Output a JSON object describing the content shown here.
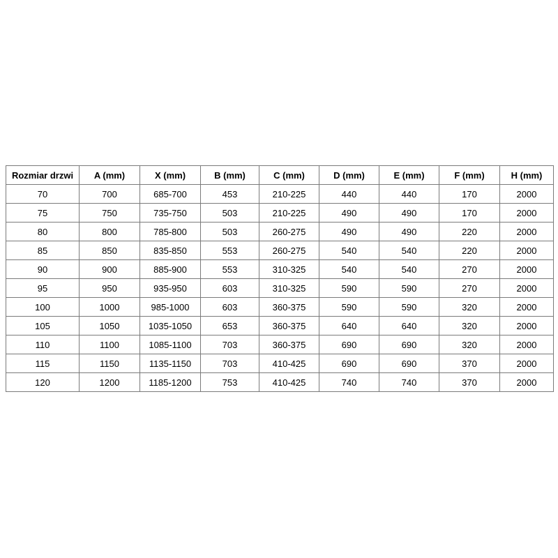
{
  "table": {
    "name": "door-size-dimensions-table",
    "headers": [
      "Rozmiar drzwi",
      "A (mm)",
      "X (mm)",
      "B (mm)",
      "C (mm)",
      "D (mm)",
      "E (mm)",
      "F (mm)",
      "H (mm)"
    ],
    "rows": [
      [
        "70",
        "700",
        "685-700",
        "453",
        "210-225",
        "440",
        "440",
        "170",
        "2000"
      ],
      [
        "75",
        "750",
        "735-750",
        "503",
        "210-225",
        "490",
        "490",
        "170",
        "2000"
      ],
      [
        "80",
        "800",
        "785-800",
        "503",
        "260-275",
        "490",
        "490",
        "220",
        "2000"
      ],
      [
        "85",
        "850",
        "835-850",
        "553",
        "260-275",
        "540",
        "540",
        "220",
        "2000"
      ],
      [
        "90",
        "900",
        "885-900",
        "553",
        "310-325",
        "540",
        "540",
        "270",
        "2000"
      ],
      [
        "95",
        "950",
        "935-950",
        "603",
        "310-325",
        "590",
        "590",
        "270",
        "2000"
      ],
      [
        "100",
        "1000",
        "985-1000",
        "603",
        "360-375",
        "590",
        "590",
        "320",
        "2000"
      ],
      [
        "105",
        "1050",
        "1035-1050",
        "653",
        "360-375",
        "640",
        "640",
        "320",
        "2000"
      ],
      [
        "110",
        "1100",
        "1085-1100",
        "703",
        "360-375",
        "690",
        "690",
        "320",
        "2000"
      ],
      [
        "115",
        "1150",
        "1135-1150",
        "703",
        "410-425",
        "690",
        "690",
        "370",
        "2000"
      ],
      [
        "120",
        "1200",
        "1185-1200",
        "753",
        "410-425",
        "740",
        "740",
        "370",
        "2000"
      ]
    ]
  },
  "colors": {
    "border": "#7a7a7a",
    "text": "#000000",
    "background": "#ffffff"
  }
}
